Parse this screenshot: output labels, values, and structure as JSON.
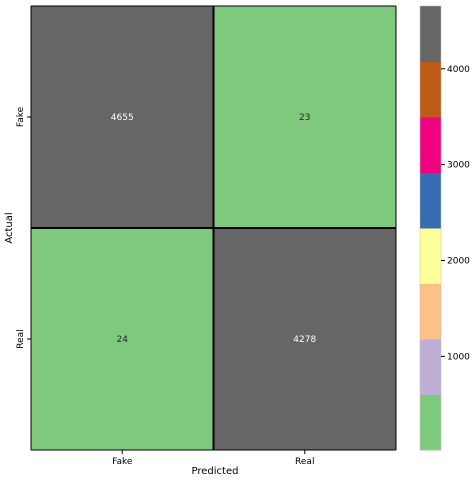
{
  "chart_data": {
    "type": "heatmap",
    "title": "",
    "xlabel": "Predicted",
    "ylabel": "Actual",
    "x_categories": [
      "Fake",
      "Real"
    ],
    "y_categories": [
      "Fake",
      "Real"
    ],
    "values": [
      [
        4655,
        23
      ],
      [
        24,
        4278
      ]
    ],
    "colorbar": {
      "colormap": "Accent",
      "range": [
        23,
        4655
      ],
      "ticks": [
        1000,
        2000,
        3000,
        4000
      ],
      "tick_labels": [
        "1000",
        "2000",
        "3000",
        "4000"
      ],
      "colors": [
        "#7fc97f",
        "#beaed4",
        "#fdc086",
        "#ffff99",
        "#386cb0",
        "#f0027f",
        "#bf5b17",
        "#666666"
      ]
    },
    "cell_colors": {
      "high": "#666666",
      "low": "#7fc97f"
    },
    "annotation_colors": {
      "on_dark": "#ffffff",
      "on_light": "#262626"
    },
    "grid_line_color": "#000000"
  }
}
